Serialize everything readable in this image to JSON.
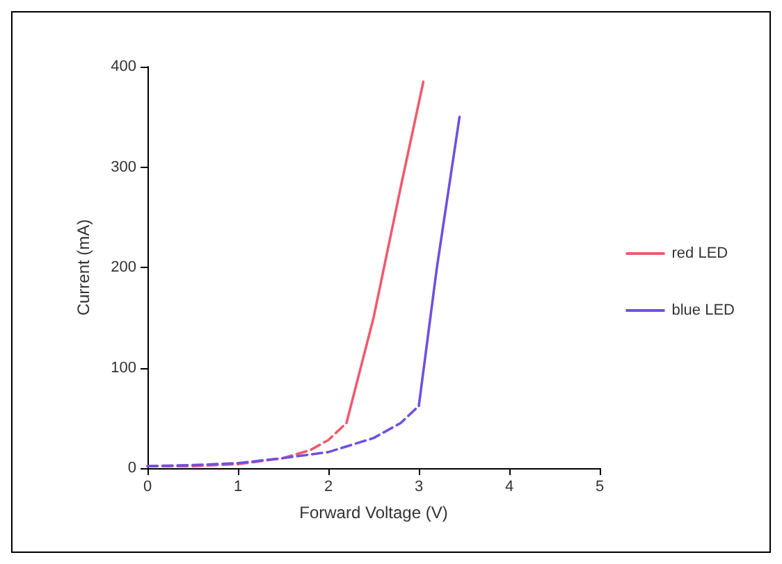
{
  "chart_data": {
    "type": "line",
    "xlabel": "Forward Voltage (V)",
    "ylabel": "Current (mA)",
    "xlim": [
      0,
      5
    ],
    "xticks": [
      0,
      1,
      2,
      3,
      4,
      5
    ],
    "ylim": [
      0,
      400
    ],
    "yticks": [
      0,
      100,
      200,
      300,
      400
    ],
    "grid": false,
    "legend": "right",
    "marker": "none",
    "series": [
      {
        "color": "#f05a6e",
        "line_style": "dashed",
        "x": [
          0,
          0.5,
          1,
          1.5,
          1.8,
          2.0,
          2.2
        ],
        "values": [
          2,
          2,
          4,
          10,
          18,
          28,
          45
        ]
      },
      {
        "name": "red LED",
        "color": "#f05a6e",
        "line_style": "solid",
        "x": [
          2.2,
          2.5,
          2.8,
          3.05
        ],
        "values": [
          45,
          150,
          280,
          385
        ]
      },
      {
        "color": "#7050e0",
        "line_style": "dashed",
        "x": [
          0,
          0.5,
          1,
          1.5,
          2,
          2.5,
          2.8,
          3.0
        ],
        "values": [
          2,
          3,
          5,
          10,
          16,
          30,
          45,
          62
        ]
      },
      {
        "name": "blue LED",
        "color": "#7050e0",
        "line_style": "solid",
        "x": [
          3.0,
          3.2,
          3.45
        ],
        "values": [
          62,
          200,
          350
        ]
      }
    ]
  }
}
